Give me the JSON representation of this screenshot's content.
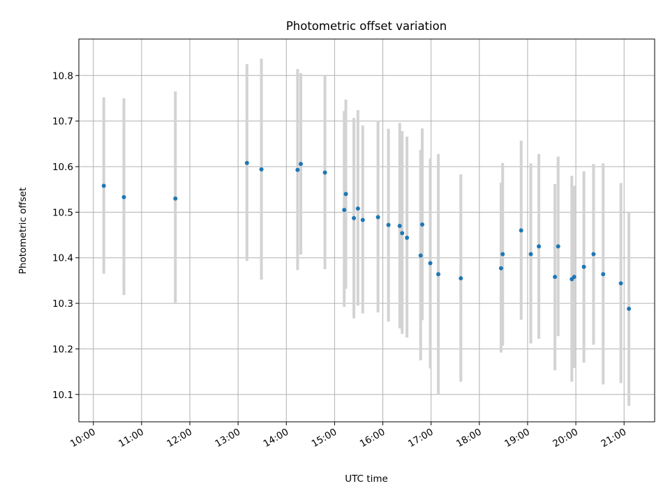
{
  "chart_data": {
    "type": "scatter",
    "title": "Photometric offset variation",
    "xlabel": "UTC time",
    "ylabel": "Photometric offset",
    "xlim": [
      "09:42",
      "21:38"
    ],
    "ylim": [
      10.04,
      10.88
    ],
    "x_ticks": [
      "10:00",
      "11:00",
      "12:00",
      "13:00",
      "14:00",
      "15:00",
      "16:00",
      "17:00",
      "18:00",
      "19:00",
      "20:00",
      "21:00"
    ],
    "y_ticks": [
      10.1,
      10.2,
      10.3,
      10.4,
      10.5,
      10.6,
      10.7,
      10.8
    ],
    "grid": true,
    "colors": {
      "point": "#1f77b4",
      "errorbar": "#d3d3d3"
    },
    "points": [
      {
        "x": "10:13",
        "y": 10.558,
        "lo": 10.365,
        "hi": 10.752
      },
      {
        "x": "10:38",
        "y": 10.533,
        "lo": 10.318,
        "hi": 10.75
      },
      {
        "x": "11:42",
        "y": 10.53,
        "lo": 10.3,
        "hi": 10.765
      },
      {
        "x": "13:11",
        "y": 10.608,
        "lo": 10.393,
        "hi": 10.825
      },
      {
        "x": "13:29",
        "y": 10.594,
        "lo": 10.352,
        "hi": 10.837
      },
      {
        "x": "14:14",
        "y": 10.593,
        "lo": 10.373,
        "hi": 10.814
      },
      {
        "x": "14:18",
        "y": 10.606,
        "lo": 10.407,
        "hi": 10.805
      },
      {
        "x": "14:48",
        "y": 10.587,
        "lo": 10.375,
        "hi": 10.8
      },
      {
        "x": "15:12",
        "y": 10.505,
        "lo": 10.292,
        "hi": 10.722
      },
      {
        "x": "15:14",
        "y": 10.54,
        "lo": 10.332,
        "hi": 10.747
      },
      {
        "x": "15:24",
        "y": 10.487,
        "lo": 10.267,
        "hi": 10.707
      },
      {
        "x": "15:29",
        "y": 10.508,
        "lo": 10.295,
        "hi": 10.724
      },
      {
        "x": "15:35",
        "y": 10.483,
        "lo": 10.278,
        "hi": 10.69
      },
      {
        "x": "15:54",
        "y": 10.489,
        "lo": 10.28,
        "hi": 10.7
      },
      {
        "x": "16:07",
        "y": 10.472,
        "lo": 10.26,
        "hi": 10.683
      },
      {
        "x": "16:21",
        "y": 10.47,
        "lo": 10.245,
        "hi": 10.696
      },
      {
        "x": "16:24",
        "y": 10.454,
        "lo": 10.233,
        "hi": 10.678
      },
      {
        "x": "16:30",
        "y": 10.444,
        "lo": 10.225,
        "hi": 10.666
      },
      {
        "x": "16:47",
        "y": 10.405,
        "lo": 10.175,
        "hi": 10.637
      },
      {
        "x": "16:49",
        "y": 10.473,
        "lo": 10.263,
        "hi": 10.684
      },
      {
        "x": "16:59",
        "y": 10.388,
        "lo": 10.157,
        "hi": 10.618
      },
      {
        "x": "17:09",
        "y": 10.364,
        "lo": 10.1,
        "hi": 10.628
      },
      {
        "x": "17:37",
        "y": 10.355,
        "lo": 10.128,
        "hi": 10.583
      },
      {
        "x": "18:27",
        "y": 10.377,
        "lo": 10.192,
        "hi": 10.565
      },
      {
        "x": "18:29",
        "y": 10.408,
        "lo": 10.207,
        "hi": 10.608
      },
      {
        "x": "18:52",
        "y": 10.46,
        "lo": 10.264,
        "hi": 10.657
      },
      {
        "x": "19:04",
        "y": 10.408,
        "lo": 10.212,
        "hi": 10.607
      },
      {
        "x": "19:14",
        "y": 10.425,
        "lo": 10.222,
        "hi": 10.628
      },
      {
        "x": "19:34",
        "y": 10.358,
        "lo": 10.153,
        "hi": 10.562
      },
      {
        "x": "19:38",
        "y": 10.425,
        "lo": 10.228,
        "hi": 10.622
      },
      {
        "x": "19:55",
        "y": 10.353,
        "lo": 10.128,
        "hi": 10.58
      },
      {
        "x": "19:58",
        "y": 10.358,
        "lo": 10.158,
        "hi": 10.558
      },
      {
        "x": "20:10",
        "y": 10.38,
        "lo": 10.17,
        "hi": 10.59
      },
      {
        "x": "20:22",
        "y": 10.408,
        "lo": 10.209,
        "hi": 10.606
      },
      {
        "x": "20:34",
        "y": 10.364,
        "lo": 10.122,
        "hi": 10.607
      },
      {
        "x": "20:56",
        "y": 10.344,
        "lo": 10.125,
        "hi": 10.564
      },
      {
        "x": "21:06",
        "y": 10.288,
        "lo": 10.075,
        "hi": 10.5
      }
    ]
  }
}
